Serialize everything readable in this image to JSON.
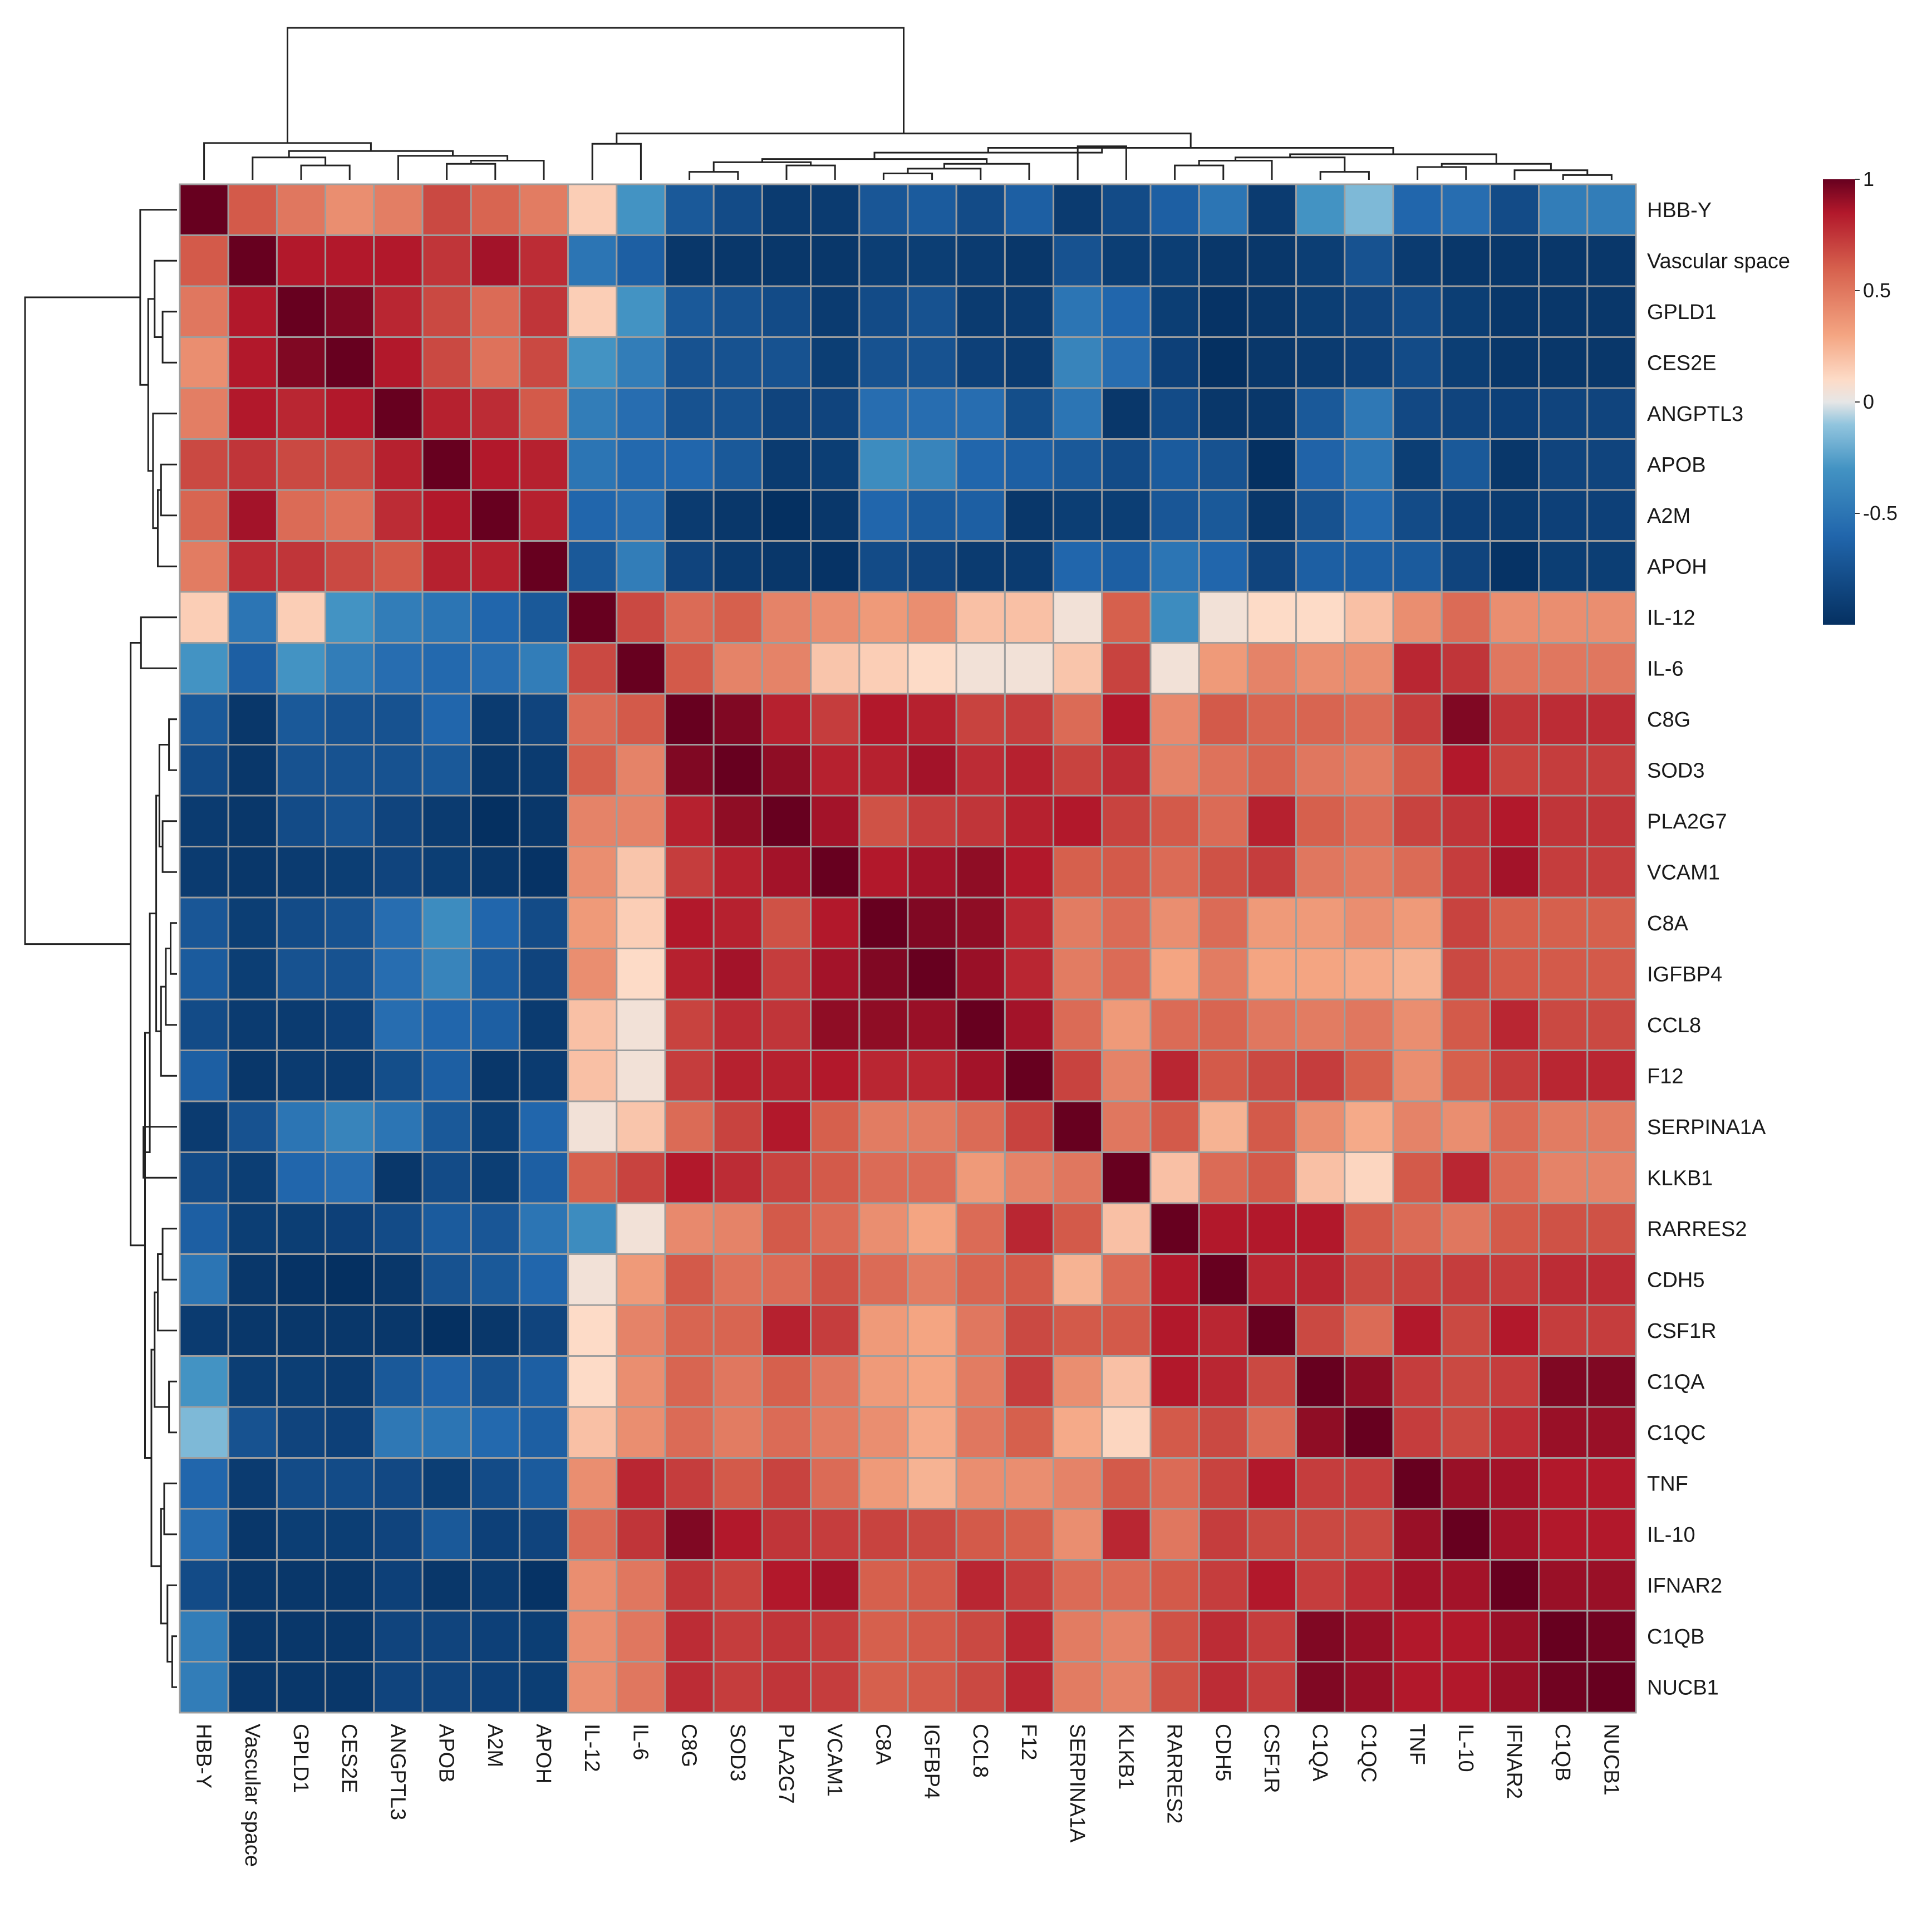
{
  "chart_data": {
    "type": "heatmap",
    "title": "",
    "row_labels": [
      "HBB-Y",
      "Vascular space",
      "GPLD1",
      "CES2E",
      "ANGPTL3",
      "APOB",
      "A2M",
      "APOH",
      "IL-12",
      "IL-6",
      "C8G",
      "SOD3",
      "PLA2G7",
      "VCAM1",
      "C8A",
      "IGFBP4",
      "CCL8",
      "F12",
      "SERPINA1A",
      "KLKB1",
      "RARRES2",
      "CDH5",
      "CSF1R",
      "C1QA",
      "C1QC",
      "TNF",
      "IL-10",
      "IFNAR2",
      "C1QB",
      "NUCB1"
    ],
    "col_labels": [
      "HBB-Y",
      "Vascular space",
      "GPLD1",
      "CES2E",
      "ANGPTL3",
      "APOB",
      "A2M",
      "APOH",
      "IL-12",
      "IL-6",
      "C8G",
      "SOD3",
      "PLA2G7",
      "VCAM1",
      "C8A",
      "IGFBP4",
      "CCL8",
      "F12",
      "SERPINA1A",
      "KLKB1",
      "RARRES2",
      "CDH5",
      "CSF1R",
      "C1QA",
      "C1QC",
      "TNF",
      "IL-10",
      "IFNAR2",
      "C1QB",
      "NUCB1"
    ],
    "values": [
      [
        1.0,
        0.62,
        0.5,
        0.4,
        0.47,
        0.68,
        0.58,
        0.48,
        0.15,
        -0.3,
        -0.7,
        -0.8,
        -0.92,
        -0.92,
        -0.72,
        -0.68,
        -0.8,
        -0.65,
        -0.92,
        -0.8,
        -0.65,
        -0.5,
        -0.92,
        -0.3,
        -0.15,
        -0.6,
        -0.55,
        -0.8,
        -0.45,
        -0.45
      ],
      [
        0.62,
        1.0,
        0.85,
        0.85,
        0.85,
        0.75,
        0.88,
        0.78,
        -0.5,
        -0.65,
        -0.95,
        -0.95,
        -0.95,
        -0.95,
        -0.9,
        -0.9,
        -0.92,
        -0.95,
        -0.75,
        -0.9,
        -0.9,
        -0.95,
        -0.95,
        -0.9,
        -0.75,
        -0.92,
        -0.95,
        -0.95,
        -0.95,
        -0.95
      ],
      [
        0.5,
        0.85,
        1.0,
        0.95,
        0.8,
        0.68,
        0.55,
        0.75,
        0.15,
        -0.3,
        -0.7,
        -0.75,
        -0.8,
        -0.92,
        -0.8,
        -0.75,
        -0.92,
        -0.92,
        -0.5,
        -0.6,
        -0.9,
        -0.98,
        -0.95,
        -0.9,
        -0.85,
        -0.8,
        -0.9,
        -0.95,
        -0.95,
        -0.95
      ],
      [
        0.4,
        0.85,
        0.95,
        1.0,
        0.85,
        0.68,
        0.52,
        0.68,
        -0.3,
        -0.45,
        -0.75,
        -0.75,
        -0.75,
        -0.9,
        -0.75,
        -0.75,
        -0.88,
        -0.92,
        -0.4,
        -0.55,
        -0.88,
        -1.0,
        -0.95,
        -0.92,
        -0.88,
        -0.8,
        -0.9,
        -0.95,
        -0.95,
        -0.95
      ],
      [
        0.47,
        0.85,
        0.8,
        0.85,
        1.0,
        0.82,
        0.78,
        0.62,
        -0.45,
        -0.55,
        -0.75,
        -0.75,
        -0.85,
        -0.85,
        -0.55,
        -0.55,
        -0.55,
        -0.78,
        -0.5,
        -0.95,
        -0.8,
        -0.95,
        -0.95,
        -0.7,
        -0.48,
        -0.82,
        -0.85,
        -0.88,
        -0.85,
        -0.85
      ],
      [
        0.68,
        0.75,
        0.68,
        0.68,
        0.82,
        1.0,
        0.85,
        0.82,
        -0.5,
        -0.58,
        -0.6,
        -0.7,
        -0.92,
        -0.9,
        -0.35,
        -0.4,
        -0.6,
        -0.65,
        -0.7,
        -0.8,
        -0.68,
        -0.75,
        -1.0,
        -0.62,
        -0.5,
        -0.9,
        -0.7,
        -0.95,
        -0.85,
        -0.85
      ],
      [
        0.58,
        0.88,
        0.55,
        0.52,
        0.78,
        0.85,
        1.0,
        0.82,
        -0.6,
        -0.55,
        -0.92,
        -0.95,
        -1.0,
        -0.95,
        -0.6,
        -0.68,
        -0.65,
        -0.95,
        -0.9,
        -0.9,
        -0.72,
        -0.7,
        -0.95,
        -0.75,
        -0.58,
        -0.8,
        -0.88,
        -0.92,
        -0.88,
        -0.88
      ],
      [
        0.48,
        0.78,
        0.75,
        0.68,
        0.62,
        0.82,
        0.82,
        1.0,
        -0.7,
        -0.45,
        -0.85,
        -0.92,
        -0.95,
        -0.98,
        -0.8,
        -0.85,
        -0.92,
        -0.92,
        -0.6,
        -0.65,
        -0.5,
        -0.6,
        -0.85,
        -0.65,
        -0.65,
        -0.68,
        -0.85,
        -0.98,
        -0.9,
        -0.9
      ],
      [
        0.15,
        -0.5,
        0.15,
        -0.3,
        -0.45,
        -0.5,
        -0.6,
        -0.7,
        1.0,
        0.68,
        0.55,
        0.6,
        0.45,
        0.4,
        0.35,
        0.4,
        0.2,
        0.2,
        0.05,
        0.6,
        -0.35,
        0.05,
        0.1,
        0.1,
        0.2,
        0.4,
        0.55,
        0.4,
        0.4,
        0.4
      ],
      [
        -0.3,
        -0.65,
        -0.3,
        -0.45,
        -0.55,
        -0.58,
        -0.55,
        -0.45,
        0.68,
        1.0,
        0.62,
        0.45,
        0.45,
        0.18,
        0.15,
        0.1,
        0.05,
        0.05,
        0.18,
        0.7,
        0.05,
        0.35,
        0.45,
        0.4,
        0.4,
        0.8,
        0.75,
        0.5,
        0.5,
        0.5
      ],
      [
        -0.7,
        -0.95,
        -0.7,
        -0.75,
        -0.75,
        -0.6,
        -0.92,
        -0.85,
        0.55,
        0.62,
        1.0,
        0.95,
        0.82,
        0.72,
        0.85,
        0.82,
        0.7,
        0.72,
        0.55,
        0.85,
        0.42,
        0.62,
        0.58,
        0.58,
        0.55,
        0.72,
        0.95,
        0.75,
        0.78,
        0.78
      ],
      [
        -0.8,
        -0.95,
        -0.75,
        -0.75,
        -0.75,
        -0.7,
        -0.95,
        -0.92,
        0.6,
        0.45,
        0.95,
        1.0,
        0.92,
        0.82,
        0.82,
        0.88,
        0.78,
        0.82,
        0.7,
        0.78,
        0.45,
        0.52,
        0.58,
        0.5,
        0.48,
        0.62,
        0.85,
        0.7,
        0.72,
        0.72
      ],
      [
        -0.92,
        -0.95,
        -0.8,
        -0.75,
        -0.85,
        -0.92,
        -1.0,
        -0.95,
        0.45,
        0.45,
        0.82,
        0.92,
        1.0,
        0.88,
        0.65,
        0.72,
        0.75,
        0.82,
        0.85,
        0.7,
        0.62,
        0.55,
        0.82,
        0.6,
        0.55,
        0.7,
        0.75,
        0.85,
        0.75,
        0.75
      ],
      [
        -0.92,
        -0.95,
        -0.92,
        -0.9,
        -0.85,
        -0.9,
        -0.95,
        -0.98,
        0.4,
        0.18,
        0.72,
        0.82,
        0.88,
        1.0,
        0.85,
        0.88,
        0.92,
        0.85,
        0.6,
        0.62,
        0.55,
        0.65,
        0.72,
        0.5,
        0.48,
        0.55,
        0.72,
        0.88,
        0.72,
        0.72
      ],
      [
        -0.72,
        -0.9,
        -0.8,
        -0.75,
        -0.55,
        -0.35,
        -0.6,
        -0.8,
        0.35,
        0.15,
        0.85,
        0.82,
        0.65,
        0.85,
        1.0,
        0.95,
        0.92,
        0.8,
        0.48,
        0.55,
        0.4,
        0.55,
        0.35,
        0.35,
        0.4,
        0.35,
        0.7,
        0.6,
        0.6,
        0.6
      ],
      [
        -0.68,
        -0.9,
        -0.75,
        -0.75,
        -0.55,
        -0.4,
        -0.68,
        -0.85,
        0.4,
        0.1,
        0.82,
        0.88,
        0.72,
        0.88,
        0.95,
        1.0,
        0.9,
        0.8,
        0.48,
        0.55,
        0.3,
        0.48,
        0.3,
        0.3,
        0.28,
        0.25,
        0.68,
        0.62,
        0.62,
        0.62
      ],
      [
        -0.8,
        -0.92,
        -0.92,
        -0.88,
        -0.55,
        -0.6,
        -0.65,
        -0.92,
        0.2,
        0.05,
        0.7,
        0.78,
        0.75,
        0.92,
        0.92,
        0.9,
        1.0,
        0.88,
        0.55,
        0.35,
        0.55,
        0.58,
        0.5,
        0.48,
        0.5,
        0.4,
        0.62,
        0.8,
        0.68,
        0.68
      ],
      [
        -0.65,
        -0.95,
        -0.92,
        -0.92,
        -0.78,
        -0.65,
        -0.95,
        -0.92,
        0.2,
        0.05,
        0.72,
        0.82,
        0.82,
        0.85,
        0.8,
        0.8,
        0.88,
        1.0,
        0.7,
        0.45,
        0.8,
        0.62,
        0.68,
        0.72,
        0.6,
        0.4,
        0.6,
        0.72,
        0.8,
        0.8
      ],
      [
        -0.92,
        -0.75,
        -0.5,
        -0.4,
        -0.5,
        -0.7,
        -0.9,
        -0.6,
        0.05,
        0.18,
        0.55,
        0.7,
        0.85,
        0.6,
        0.48,
        0.48,
        0.55,
        0.7,
        1.0,
        0.5,
        0.62,
        0.25,
        0.62,
        0.4,
        0.28,
        0.45,
        0.4,
        0.55,
        0.48,
        0.48
      ],
      [
        -0.8,
        -0.9,
        -0.6,
        -0.55,
        -0.95,
        -0.8,
        -0.9,
        -0.65,
        0.6,
        0.7,
        0.85,
        0.78,
        0.7,
        0.62,
        0.55,
        0.55,
        0.35,
        0.45,
        0.5,
        1.0,
        0.2,
        0.55,
        0.62,
        0.2,
        0.12,
        0.62,
        0.8,
        0.55,
        0.45,
        0.45
      ],
      [
        -0.65,
        -0.9,
        -0.9,
        -0.88,
        -0.8,
        -0.68,
        -0.72,
        -0.5,
        -0.35,
        0.05,
        0.42,
        0.45,
        0.62,
        0.55,
        0.4,
        0.3,
        0.55,
        0.8,
        0.62,
        0.2,
        1.0,
        0.85,
        0.85,
        0.85,
        0.62,
        0.55,
        0.5,
        0.62,
        0.65,
        0.65
      ],
      [
        -0.5,
        -0.95,
        -0.98,
        -1.0,
        -0.95,
        -0.75,
        -0.7,
        -0.6,
        0.05,
        0.35,
        0.62,
        0.52,
        0.55,
        0.65,
        0.55,
        0.48,
        0.58,
        0.62,
        0.25,
        0.55,
        0.85,
        1.0,
        0.8,
        0.8,
        0.68,
        0.7,
        0.72,
        0.72,
        0.78,
        0.78
      ],
      [
        -0.92,
        -0.95,
        -0.95,
        -0.95,
        -0.95,
        -1.0,
        -0.95,
        -0.85,
        0.1,
        0.45,
        0.58,
        0.58,
        0.82,
        0.72,
        0.35,
        0.3,
        0.5,
        0.68,
        0.62,
        0.62,
        0.85,
        0.8,
        1.0,
        0.68,
        0.55,
        0.85,
        0.68,
        0.85,
        0.72,
        0.72
      ],
      [
        -0.3,
        -0.9,
        -0.9,
        -0.92,
        -0.7,
        -0.62,
        -0.75,
        -0.65,
        0.1,
        0.4,
        0.58,
        0.5,
        0.6,
        0.5,
        0.35,
        0.3,
        0.48,
        0.72,
        0.4,
        0.2,
        0.85,
        0.8,
        0.68,
        1.0,
        0.92,
        0.72,
        0.68,
        0.72,
        0.95,
        0.95
      ],
      [
        -0.15,
        -0.75,
        -0.85,
        -0.88,
        -0.48,
        -0.5,
        -0.58,
        -0.65,
        0.2,
        0.4,
        0.55,
        0.48,
        0.55,
        0.48,
        0.4,
        0.28,
        0.5,
        0.6,
        0.28,
        0.12,
        0.62,
        0.68,
        0.55,
        0.92,
        1.0,
        0.72,
        0.68,
        0.78,
        0.9,
        0.9
      ],
      [
        -0.6,
        -0.92,
        -0.8,
        -0.8,
        -0.82,
        -0.9,
        -0.8,
        -0.68,
        0.4,
        0.8,
        0.72,
        0.62,
        0.7,
        0.55,
        0.35,
        0.25,
        0.4,
        0.4,
        0.45,
        0.62,
        0.55,
        0.7,
        0.85,
        0.72,
        0.72,
        1.0,
        0.9,
        0.88,
        0.85,
        0.85
      ],
      [
        -0.55,
        -0.95,
        -0.9,
        -0.9,
        -0.85,
        -0.7,
        -0.88,
        -0.85,
        0.55,
        0.75,
        0.95,
        0.85,
        0.75,
        0.72,
        0.7,
        0.68,
        0.62,
        0.6,
        0.4,
        0.8,
        0.5,
        0.72,
        0.68,
        0.68,
        0.68,
        0.9,
        1.0,
        0.88,
        0.85,
        0.85
      ],
      [
        -0.8,
        -0.95,
        -0.95,
        -0.95,
        -0.88,
        -0.95,
        -0.92,
        -0.98,
        0.4,
        0.5,
        0.75,
        0.7,
        0.85,
        0.88,
        0.6,
        0.62,
        0.8,
        0.72,
        0.55,
        0.55,
        0.62,
        0.72,
        0.85,
        0.72,
        0.78,
        0.88,
        0.88,
        1.0,
        0.9,
        0.9
      ],
      [
        -0.45,
        -0.95,
        -0.95,
        -0.95,
        -0.85,
        -0.85,
        -0.88,
        -0.9,
        0.4,
        0.5,
        0.78,
        0.72,
        0.75,
        0.72,
        0.6,
        0.62,
        0.68,
        0.8,
        0.48,
        0.45,
        0.65,
        0.78,
        0.72,
        0.95,
        0.9,
        0.85,
        0.85,
        0.9,
        1.0,
        0.98
      ],
      [
        -0.45,
        -0.95,
        -0.95,
        -0.95,
        -0.85,
        -0.85,
        -0.88,
        -0.9,
        0.4,
        0.5,
        0.78,
        0.72,
        0.75,
        0.72,
        0.6,
        0.62,
        0.68,
        0.8,
        0.48,
        0.45,
        0.65,
        0.78,
        0.72,
        0.95,
        0.9,
        0.85,
        0.85,
        0.9,
        0.98,
        1.0
      ]
    ],
    "color_scale": {
      "min": -1,
      "max": 1,
      "stops": [
        {
          "value": -1.0,
          "color": "#053061"
        },
        {
          "value": -0.6,
          "color": "#2166ac"
        },
        {
          "value": -0.3,
          "color": "#4393c3"
        },
        {
          "value": -0.1,
          "color": "#92c5de"
        },
        {
          "value": 0.0,
          "color": "#e6e6e6"
        },
        {
          "value": 0.1,
          "color": "#fddbc7"
        },
        {
          "value": 0.3,
          "color": "#f4a582"
        },
        {
          "value": 0.6,
          "color": "#d6604d"
        },
        {
          "value": 0.85,
          "color": "#b2182b"
        },
        {
          "value": 1.0,
          "color": "#67001f"
        }
      ]
    },
    "legend": {
      "position": "top-right",
      "ticks": [
        {
          "value": 1,
          "label": "1"
        },
        {
          "value": 0.5,
          "label": "0.5"
        },
        {
          "value": 0,
          "label": "0"
        },
        {
          "value": -0.5,
          "label": "-0.5"
        }
      ]
    },
    "dendrogram": {
      "leaf_order": [
        "HBB-Y",
        "Vascular space",
        "GPLD1",
        "CES2E",
        "ANGPTL3",
        "APOB",
        "A2M",
        "APOH",
        "IL-12",
        "IL-6",
        "C8G",
        "SOD3",
        "PLA2G7",
        "VCAM1",
        "C8A",
        "IGFBP4",
        "CCL8",
        "F12",
        "SERPINA1A",
        "KLKB1",
        "RARRES2",
        "CDH5",
        "CSF1R",
        "C1QA",
        "C1QC",
        "TNF",
        "IL-10",
        "IFNAR2",
        "C1QB",
        "NUCB1"
      ],
      "merges": [
        {
          "a": "L2",
          "b": "L3",
          "h": 0.18
        },
        {
          "a": "L5",
          "b": "L6",
          "h": 0.2
        },
        {
          "a": "N1",
          "b": "L7",
          "h": 0.24
        },
        {
          "a": "L1",
          "b": "N0",
          "h": 0.28
        },
        {
          "a": "L4",
          "b": "N2",
          "h": 0.3
        },
        {
          "a": "N3",
          "b": "N4",
          "h": 0.36
        },
        {
          "a": "L0",
          "b": "N5",
          "h": 0.46
        },
        {
          "a": "L8",
          "b": "L9",
          "h": 0.45
        },
        {
          "a": "L10",
          "b": "L11",
          "h": 0.1
        },
        {
          "a": "L12",
          "b": "L13",
          "h": 0.18
        },
        {
          "a": "N8",
          "b": "N9",
          "h": 0.22
        },
        {
          "a": "L14",
          "b": "L15",
          "h": 0.08
        },
        {
          "a": "N11",
          "b": "L16",
          "h": 0.14
        },
        {
          "a": "N12",
          "b": "L17",
          "h": 0.2
        },
        {
          "a": "N10",
          "b": "N13",
          "h": 0.26
        },
        {
          "a": "L18",
          "b": "L19",
          "h": 0.42
        },
        {
          "a": "N14",
          "b": "N15",
          "h": 0.34
        },
        {
          "a": "L20",
          "b": "L21",
          "h": 0.18
        },
        {
          "a": "N17",
          "b": "L22",
          "h": 0.24
        },
        {
          "a": "L23",
          "b": "L24",
          "h": 0.1
        },
        {
          "a": "N18",
          "b": "N19",
          "h": 0.28
        },
        {
          "a": "L25",
          "b": "L26",
          "h": 0.16
        },
        {
          "a": "L28",
          "b": "L29",
          "h": 0.06
        },
        {
          "a": "L27",
          "b": "N22",
          "h": 0.12
        },
        {
          "a": "N21",
          "b": "N23",
          "h": 0.2
        },
        {
          "a": "N20",
          "b": "N24",
          "h": 0.32
        },
        {
          "a": "N16",
          "b": "N25",
          "h": 0.4
        },
        {
          "a": "N7",
          "b": "N26",
          "h": 0.58
        },
        {
          "a": "N6",
          "b": "N27",
          "h": 1.9
        }
      ]
    }
  }
}
